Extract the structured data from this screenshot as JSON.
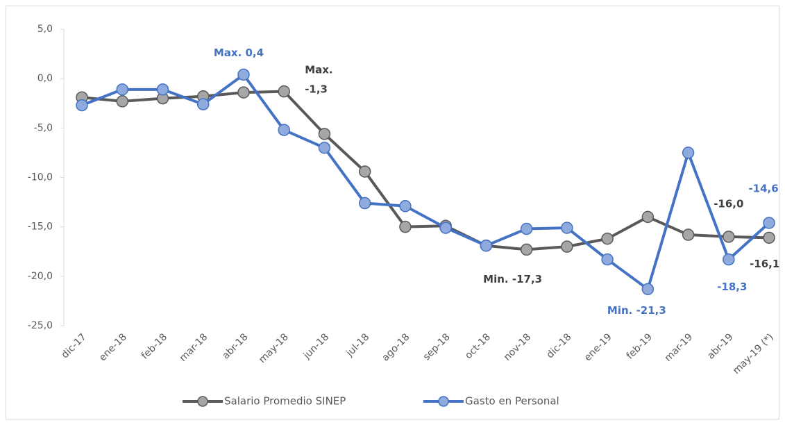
{
  "chart_data": {
    "type": "line",
    "categories": [
      "dic-17",
      "ene-18",
      "feb-18",
      "mar-18",
      "abr-18",
      "may-18",
      "jun-18",
      "jul-18",
      "ago-18",
      "sep-18",
      "oct-18",
      "nov-18",
      "dic-18",
      "ene-19",
      "feb-19",
      "mar-19",
      "abr-19",
      "may-19 (*)"
    ],
    "series": [
      {
        "name": "Salario Promedio SINEP",
        "color": "#595959",
        "marker_color": "#a6a6a6",
        "values": [
          -1.9,
          -2.3,
          -2.0,
          -1.8,
          -1.4,
          -1.3,
          -5.6,
          -9.4,
          -15.0,
          -14.9,
          -16.9,
          -17.3,
          -17.0,
          -16.2,
          -14.0,
          -15.8,
          -16.0,
          -16.1
        ],
        "value_labels": [
          null,
          null,
          null,
          null,
          null,
          "Max. -1,3",
          null,
          null,
          null,
          null,
          null,
          "Min. -17,3",
          null,
          null,
          null,
          null,
          "-16,0",
          "-16,1"
        ]
      },
      {
        "name": "Gasto en Personal",
        "color": "#4472c4",
        "marker_color": "#8faadc",
        "values": [
          -2.7,
          -1.1,
          -1.1,
          -2.6,
          0.4,
          -5.2,
          -7.0,
          -12.6,
          -12.9,
          -15.1,
          -16.9,
          -15.2,
          -15.1,
          -18.3,
          -21.3,
          -7.5,
          -18.3,
          -14.6
        ],
        "value_labels": [
          null,
          null,
          null,
          null,
          "Max. 0,4",
          null,
          null,
          null,
          null,
          null,
          null,
          null,
          null,
          null,
          "Min. -21,3",
          null,
          "-18,3",
          "-14,6"
        ]
      }
    ],
    "ylim": [
      -25,
      5
    ],
    "yticks": [
      {
        "value": -25,
        "label": "-25,0"
      },
      {
        "value": -20,
        "label": "-20,0"
      },
      {
        "value": -15,
        "label": "-15,0"
      },
      {
        "value": -10,
        "label": "-10,0"
      },
      {
        "value": -5,
        "label": "-5,0"
      },
      {
        "value": 0,
        "label": "0,0"
      },
      {
        "value": 5,
        "label": "5,0"
      }
    ],
    "grid": false,
    "legend": "bottom"
  }
}
